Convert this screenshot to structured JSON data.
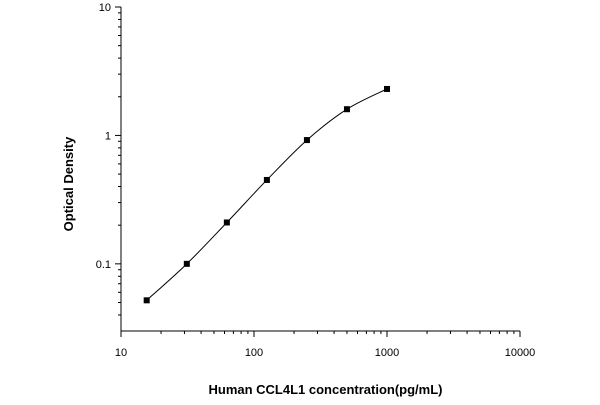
{
  "chart_data": {
    "type": "scatter",
    "title": "",
    "xlabel": "Human CCL4L1 concentration(pg/mL)",
    "ylabel": "Optical Density",
    "x_scale": "log",
    "y_scale": "log",
    "xlim": [
      10,
      10000
    ],
    "ylim": [
      0.03,
      10
    ],
    "x_ticks": [
      10,
      100,
      1000,
      10000
    ],
    "x_tick_labels": [
      "10",
      "100",
      "1000",
      "10000"
    ],
    "y_ticks": [
      0.1,
      1,
      10
    ],
    "y_tick_labels": [
      "0.1",
      "1",
      "10"
    ],
    "grid": false,
    "legend": "none",
    "series": [
      {
        "marker": "square",
        "fit_line": "smooth curve",
        "color": "#000000",
        "x": [
          15.6,
          31.25,
          62.5,
          125,
          250,
          500,
          1000
        ],
        "y": [
          0.052,
          0.1,
          0.21,
          0.45,
          0.92,
          1.6,
          2.3
        ]
      }
    ]
  }
}
